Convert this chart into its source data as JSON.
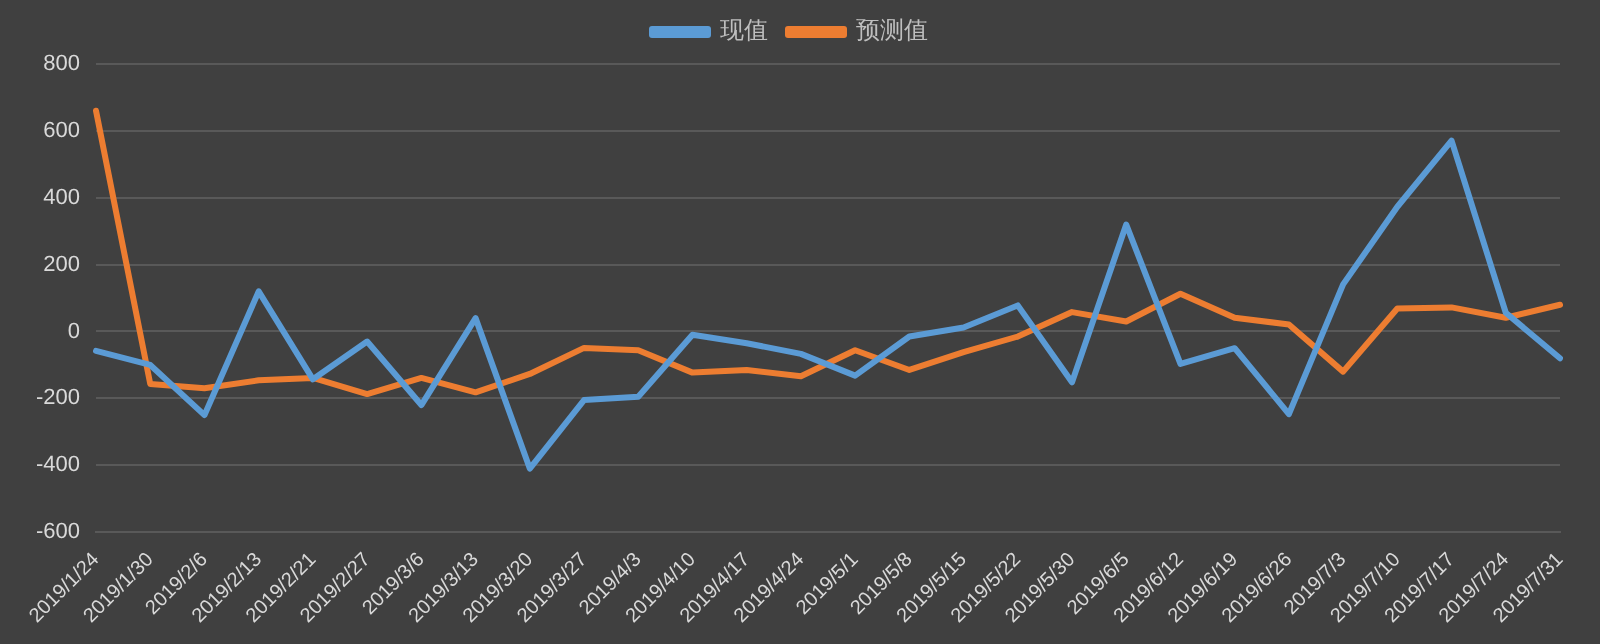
{
  "chart_data": {
    "type": "line",
    "categories": [
      "2019/1/24",
      "2019/1/30",
      "2019/2/6",
      "2019/2/13",
      "2019/2/21",
      "2019/2/27",
      "2019/3/6",
      "2019/3/13",
      "2019/3/20",
      "2019/3/27",
      "2019/4/3",
      "2019/4/10",
      "2019/4/17",
      "2019/4/24",
      "2019/5/1",
      "2019/5/8",
      "2019/5/15",
      "2019/5/22",
      "2019/5/30",
      "2019/6/5",
      "2019/6/12",
      "2019/6/19",
      "2019/6/26",
      "2019/7/3",
      "2019/7/10",
      "2019/7/17",
      "2019/7/24",
      "2019/7/31"
    ],
    "series": [
      {
        "name": "现值",
        "color": "#5b9bd5",
        "values": [
          -58,
          -100,
          -250,
          120,
          -143,
          -30,
          -220,
          40,
          -410,
          -205,
          -195,
          -10,
          -35,
          -67,
          -132,
          -15,
          12,
          78,
          -152,
          320,
          -97,
          -50,
          -247,
          141,
          373,
          571,
          56,
          -80
        ]
      },
      {
        "name": "预测值",
        "color": "#ed7d31",
        "values": [
          660,
          -157,
          -170,
          -146,
          -139,
          -187,
          -139,
          -182,
          -127,
          -49,
          -56,
          -123,
          -115,
          -134,
          -56,
          -115,
          -62,
          -15,
          58,
          30,
          113,
          41,
          21,
          -120,
          69,
          72,
          41,
          80
        ]
      }
    ],
    "ylim": [
      -600,
      800
    ],
    "yticks": [
      -600,
      -400,
      -200,
      0,
      200,
      400,
      600,
      800
    ],
    "grid": "y",
    "legend": "top",
    "marker": "none",
    "line_style": "solid"
  }
}
